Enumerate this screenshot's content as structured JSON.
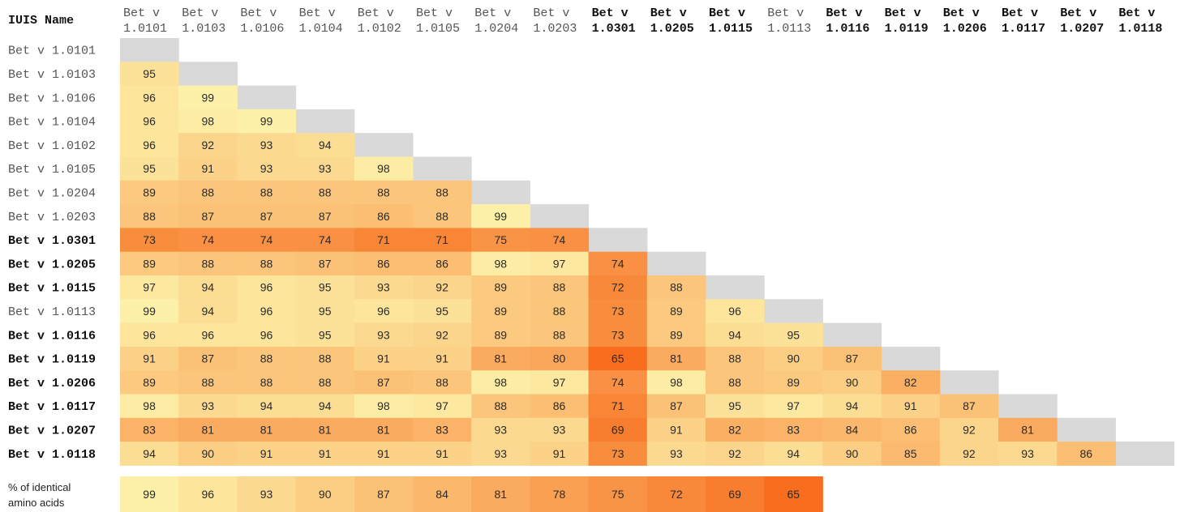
{
  "chart_data": {
    "type": "heatmap",
    "corner_header": "IUIS Name",
    "names": [
      "Bet v 1.0101",
      "Bet v 1.0103",
      "Bet v 1.0106",
      "Bet v 1.0104",
      "Bet v 1.0102",
      "Bet v 1.0105",
      "Bet v 1.0204",
      "Bet v 1.0203",
      "Bet v 1.0301",
      "Bet v 1.0205",
      "Bet v 1.0115",
      "Bet v 1.0113",
      "Bet v 1.0116",
      "Bet v 1.0119",
      "Bet v 1.0206",
      "Bet v 1.0117",
      "Bet v 1.0207",
      "Bet v 1.0118"
    ],
    "bold": [
      false,
      false,
      false,
      false,
      false,
      false,
      false,
      false,
      true,
      true,
      true,
      false,
      true,
      true,
      true,
      true,
      true,
      true
    ],
    "matrix": [
      [],
      [
        95
      ],
      [
        96,
        99
      ],
      [
        96,
        98,
        99
      ],
      [
        96,
        92,
        93,
        94
      ],
      [
        95,
        91,
        93,
        93,
        98
      ],
      [
        89,
        88,
        88,
        88,
        88,
        88
      ],
      [
        88,
        87,
        87,
        87,
        86,
        88,
        99
      ],
      [
        73,
        74,
        74,
        74,
        71,
        71,
        75,
        74
      ],
      [
        89,
        88,
        88,
        87,
        86,
        86,
        98,
        97,
        74
      ],
      [
        97,
        94,
        96,
        95,
        93,
        92,
        89,
        88,
        72,
        88
      ],
      [
        99,
        94,
        96,
        95,
        96,
        95,
        89,
        88,
        73,
        89,
        96
      ],
      [
        96,
        96,
        96,
        95,
        93,
        92,
        89,
        88,
        73,
        89,
        94,
        95
      ],
      [
        91,
        87,
        88,
        88,
        91,
        91,
        81,
        80,
        65,
        81,
        88,
        90,
        87
      ],
      [
        89,
        88,
        88,
        88,
        87,
        88,
        98,
        97,
        74,
        98,
        88,
        89,
        90,
        82
      ],
      [
        98,
        93,
        94,
        94,
        98,
        97,
        88,
        86,
        71,
        87,
        95,
        97,
        94,
        91,
        87
      ],
      [
        83,
        81,
        81,
        81,
        81,
        83,
        93,
        93,
        69,
        91,
        82,
        83,
        84,
        86,
        92,
        81
      ],
      [
        94,
        90,
        91,
        91,
        91,
        91,
        93,
        91,
        73,
        93,
        92,
        94,
        90,
        85,
        92,
        93,
        86
      ]
    ],
    "legend": {
      "label_line1": "% of identical",
      "label_line2": "amino acids",
      "values": [
        99,
        96,
        93,
        90,
        87,
        84,
        81,
        78,
        75,
        72,
        69,
        65
      ]
    },
    "colors": {
      "high": "#fdf0a8",
      "low": "#f86e1e",
      "diagonal": "#d9d9d9"
    }
  }
}
